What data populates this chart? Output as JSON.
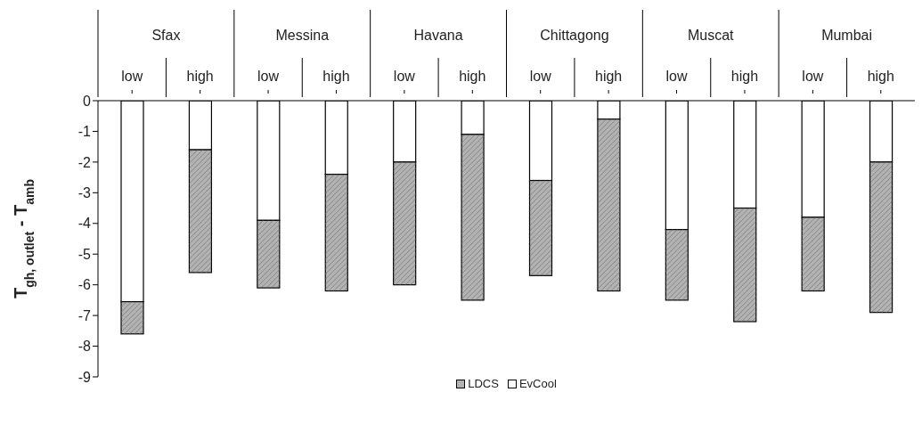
{
  "chart_data": {
    "type": "bar",
    "stacked": true,
    "ylabel": "T$_{gh, outlet}$ - T$_{amb}$",
    "categories": [
      "low",
      "high",
      "low",
      "high",
      "low",
      "high",
      "low",
      "high",
      "low",
      "high",
      "low",
      "high"
    ],
    "annotations": [
      "Sfax",
      "Messina",
      "Havana",
      "Chittagong",
      "Muscat",
      "Mumbai"
    ],
    "series": [
      {
        "name": "EvCool",
        "color": "#ffffff",
        "values": [
          -6.55,
          -1.6,
          -3.9,
          -2.4,
          -2.0,
          -1.1,
          -2.6,
          -0.6,
          -4.2,
          -3.5,
          -3.8,
          -2.0
        ]
      },
      {
        "name": "LDCS",
        "color": "#b3b3b3",
        "values": [
          -1.05,
          -4.0,
          -2.2,
          -3.8,
          -4.0,
          -5.4,
          -3.1,
          -5.6,
          -2.3,
          -3.7,
          -2.4,
          -4.9
        ]
      }
    ],
    "ylim": [
      -9,
      0
    ],
    "yticks": [
      0,
      -1,
      -2,
      -3,
      -4,
      -5,
      -6,
      -7,
      -8,
      -9
    ],
    "legend": "bottom",
    "grid": false
  }
}
